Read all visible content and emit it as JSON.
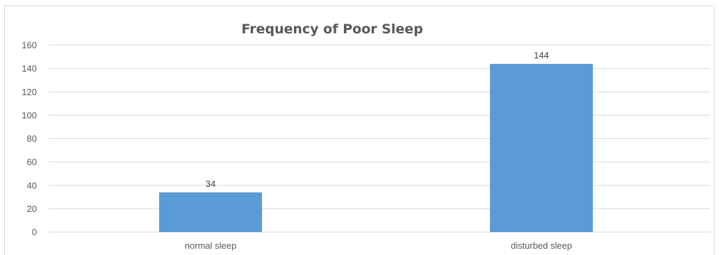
{
  "chart_data": {
    "type": "bar",
    "title": "Frequency of Poor Sleep",
    "categories": [
      "normal sleep",
      "disturbed sleep"
    ],
    "values": [
      34,
      144
    ],
    "ylim": [
      0,
      160
    ],
    "yticks": [
      0,
      20,
      40,
      60,
      80,
      100,
      120,
      140,
      160
    ],
    "xlabel": "",
    "ylabel": "",
    "grid": true,
    "legend": "none",
    "bar_color": "#5b9bd5",
    "gridline_color": "#d9d9d9",
    "text_color": "#595959"
  }
}
